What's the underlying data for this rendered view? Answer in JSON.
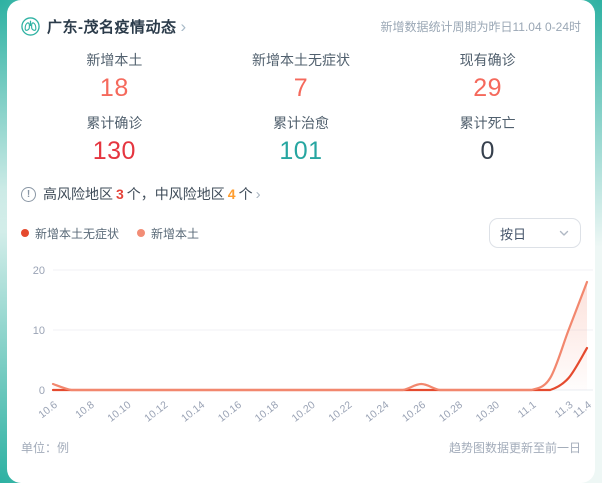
{
  "header": {
    "title": "广东-茂名疫情动态",
    "chevron": "›",
    "note": "新增数据统计周期为昨日11.04 0-24时"
  },
  "stats": [
    {
      "label": "新增本土",
      "value": "18",
      "color": "#f5695c"
    },
    {
      "label": "新增本土无症状",
      "value": "7",
      "color": "#f5695c"
    },
    {
      "label": "现有确诊",
      "value": "29",
      "color": "#f5695c"
    },
    {
      "label": "累计确诊",
      "value": "130",
      "color": "#e5353f"
    },
    {
      "label": "累计治愈",
      "value": "101",
      "color": "#27a6a1"
    },
    {
      "label": "累计死亡",
      "value": "0",
      "color": "#36404d"
    }
  ],
  "risk": {
    "label_high": "高风险地区",
    "high_count": "3",
    "mid_text": "个，中风险地区",
    "mid_count": "4",
    "suffix": "个",
    "high_color": "#e5433a",
    "mid_color": "#ff9d2e",
    "chevron": "›"
  },
  "legend": [
    {
      "label": "新增本土无症状",
      "color": "#e54a2e"
    },
    {
      "label": "新增本土",
      "color": "#f28d76"
    }
  ],
  "view_selector": {
    "value": "按日"
  },
  "chart_data": {
    "type": "line",
    "x": [
      "10.6",
      "10.7",
      "10.8",
      "10.9",
      "10.10",
      "10.11",
      "10.12",
      "10.13",
      "10.14",
      "10.15",
      "10.16",
      "10.17",
      "10.18",
      "10.19",
      "10.20",
      "10.21",
      "10.22",
      "10.23",
      "10.24",
      "10.25",
      "10.26",
      "10.27",
      "10.28",
      "10.29",
      "10.30",
      "10.31",
      "11.1",
      "11.2",
      "11.3",
      "11.4"
    ],
    "series": [
      {
        "name": "新增本土无症状",
        "color": "#e54a2e",
        "area": false,
        "values": [
          0,
          0,
          0,
          0,
          0,
          0,
          0,
          0,
          0,
          0,
          0,
          0,
          0,
          0,
          0,
          0,
          0,
          0,
          0,
          0,
          0,
          0,
          0,
          0,
          0,
          0,
          0,
          0,
          2,
          7
        ]
      },
      {
        "name": "新增本土",
        "color": "#f2876e",
        "area": true,
        "values": [
          1,
          0,
          0,
          0,
          0,
          0,
          0,
          0,
          0,
          0,
          0,
          0,
          0,
          0,
          0,
          0,
          0,
          0,
          0,
          0,
          1,
          0,
          0,
          0,
          0,
          0,
          0,
          2,
          10,
          18
        ]
      }
    ],
    "xticks": [
      "10.6",
      "10.8",
      "10.10",
      "10.12",
      "10.14",
      "10.16",
      "10.18",
      "10.20",
      "10.22",
      "10.24",
      "10.26",
      "10.28",
      "10.30",
      "11.1",
      "11.3",
      "11.4"
    ],
    "yticks": [
      0,
      10,
      20
    ],
    "ylim": [
      0,
      20
    ],
    "grid_color": "#f1f2f6",
    "axis_line_color": "#e9ecf2",
    "tick_label_color": "#9aa3b5",
    "legend_position": "top-left"
  },
  "footer": {
    "unit": "单位：例",
    "update": "趋势图数据更新至前一日"
  },
  "brand_color": "#2fb2a3"
}
